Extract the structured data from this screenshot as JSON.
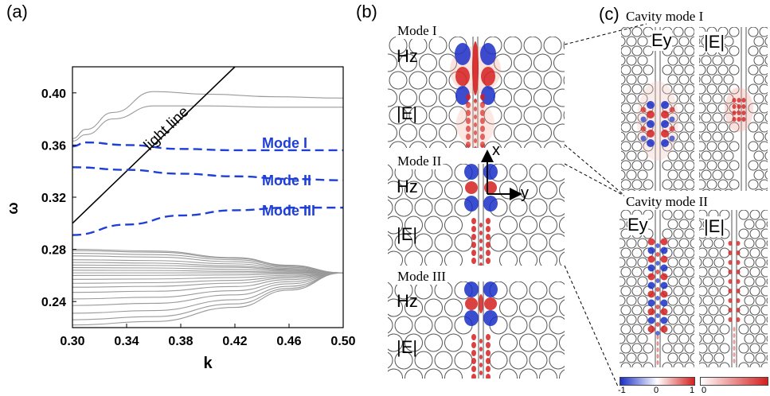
{
  "panels": {
    "a": {
      "letter": "(a)"
    },
    "b": {
      "letter": "(b)",
      "mode_titles": [
        "Mode I",
        "Mode II",
        "Mode III"
      ],
      "field_labels": [
        "Hz",
        "|E|"
      ],
      "axes": {
        "x": "x",
        "y": "y"
      }
    },
    "c": {
      "letter": "(c)",
      "cavity_titles": [
        "Cavity mode I",
        "Cavity mode II"
      ],
      "field_labels": [
        "Ey",
        "|E|"
      ],
      "colorbar_left": [
        "-1",
        "0",
        "1"
      ],
      "colorbar_right": [
        "0"
      ]
    }
  },
  "chart_data": {
    "type": "line",
    "xlabel": "k",
    "ylabel": "ω",
    "xlim": [
      0.3,
      0.5
    ],
    "ylim": [
      0.22,
      0.42
    ],
    "xticks": [
      "0.30",
      "0.34",
      "0.38",
      "0.42",
      "0.46",
      "0.50"
    ],
    "yticks": [
      "0.24",
      "0.28",
      "0.32",
      "0.36",
      "0.40"
    ],
    "annotations": [
      "light line",
      "Mode I",
      "Mode II",
      "Mode III"
    ],
    "light_line": {
      "x": [
        0.3,
        0.42
      ],
      "y": [
        0.3,
        0.42
      ]
    },
    "modes": [
      {
        "name": "Mode I",
        "x": [
          0.3,
          0.31,
          0.34,
          0.38,
          0.42,
          0.46,
          0.5
        ],
        "y": [
          0.359,
          0.362,
          0.36,
          0.357,
          0.356,
          0.356,
          0.356
        ]
      },
      {
        "name": "Mode II",
        "x": [
          0.3,
          0.34,
          0.38,
          0.42,
          0.46,
          0.5
        ],
        "y": [
          0.343,
          0.341,
          0.338,
          0.336,
          0.334,
          0.333
        ]
      },
      {
        "name": "Mode III",
        "x": [
          0.3,
          0.34,
          0.38,
          0.42,
          0.46,
          0.5
        ],
        "y": [
          0.291,
          0.299,
          0.306,
          0.31,
          0.312,
          0.312
        ]
      }
    ],
    "upper_bands": [
      {
        "x": [
          0.3,
          0.31,
          0.33,
          0.36,
          0.4,
          0.45,
          0.5
        ],
        "y": [
          0.365,
          0.372,
          0.385,
          0.401,
          0.399,
          0.397,
          0.396
        ]
      },
      {
        "x": [
          0.3,
          0.31,
          0.33,
          0.36,
          0.4,
          0.45,
          0.5
        ],
        "y": [
          0.363,
          0.368,
          0.38,
          0.39,
          0.39,
          0.389,
          0.389
        ]
      }
    ],
    "lower_bands_top": [
      0.28,
      0.279,
      0.277,
      0.275,
      0.272,
      0.27,
      0.268,
      0.266,
      0.264,
      0.262,
      0.26,
      0.257,
      0.254,
      0.251,
      0.247,
      0.242,
      0.237,
      0.231,
      0.226,
      0.222
    ],
    "lower_bands_bottom": [
      0.266,
      0.266,
      0.266,
      0.265,
      0.265,
      0.264,
      0.264,
      0.263,
      0.262,
      0.262,
      0.261,
      0.26,
      0.259,
      0.258,
      0.257,
      0.256,
      0.255,
      0.254,
      0.253,
      0.252
    ],
    "lower_bands_converge": 0.262
  },
  "colors": {
    "mode_line": "#1f3fd6",
    "band": "#9a9a9a",
    "red": "#d42020",
    "blue": "#1a2fc8"
  }
}
